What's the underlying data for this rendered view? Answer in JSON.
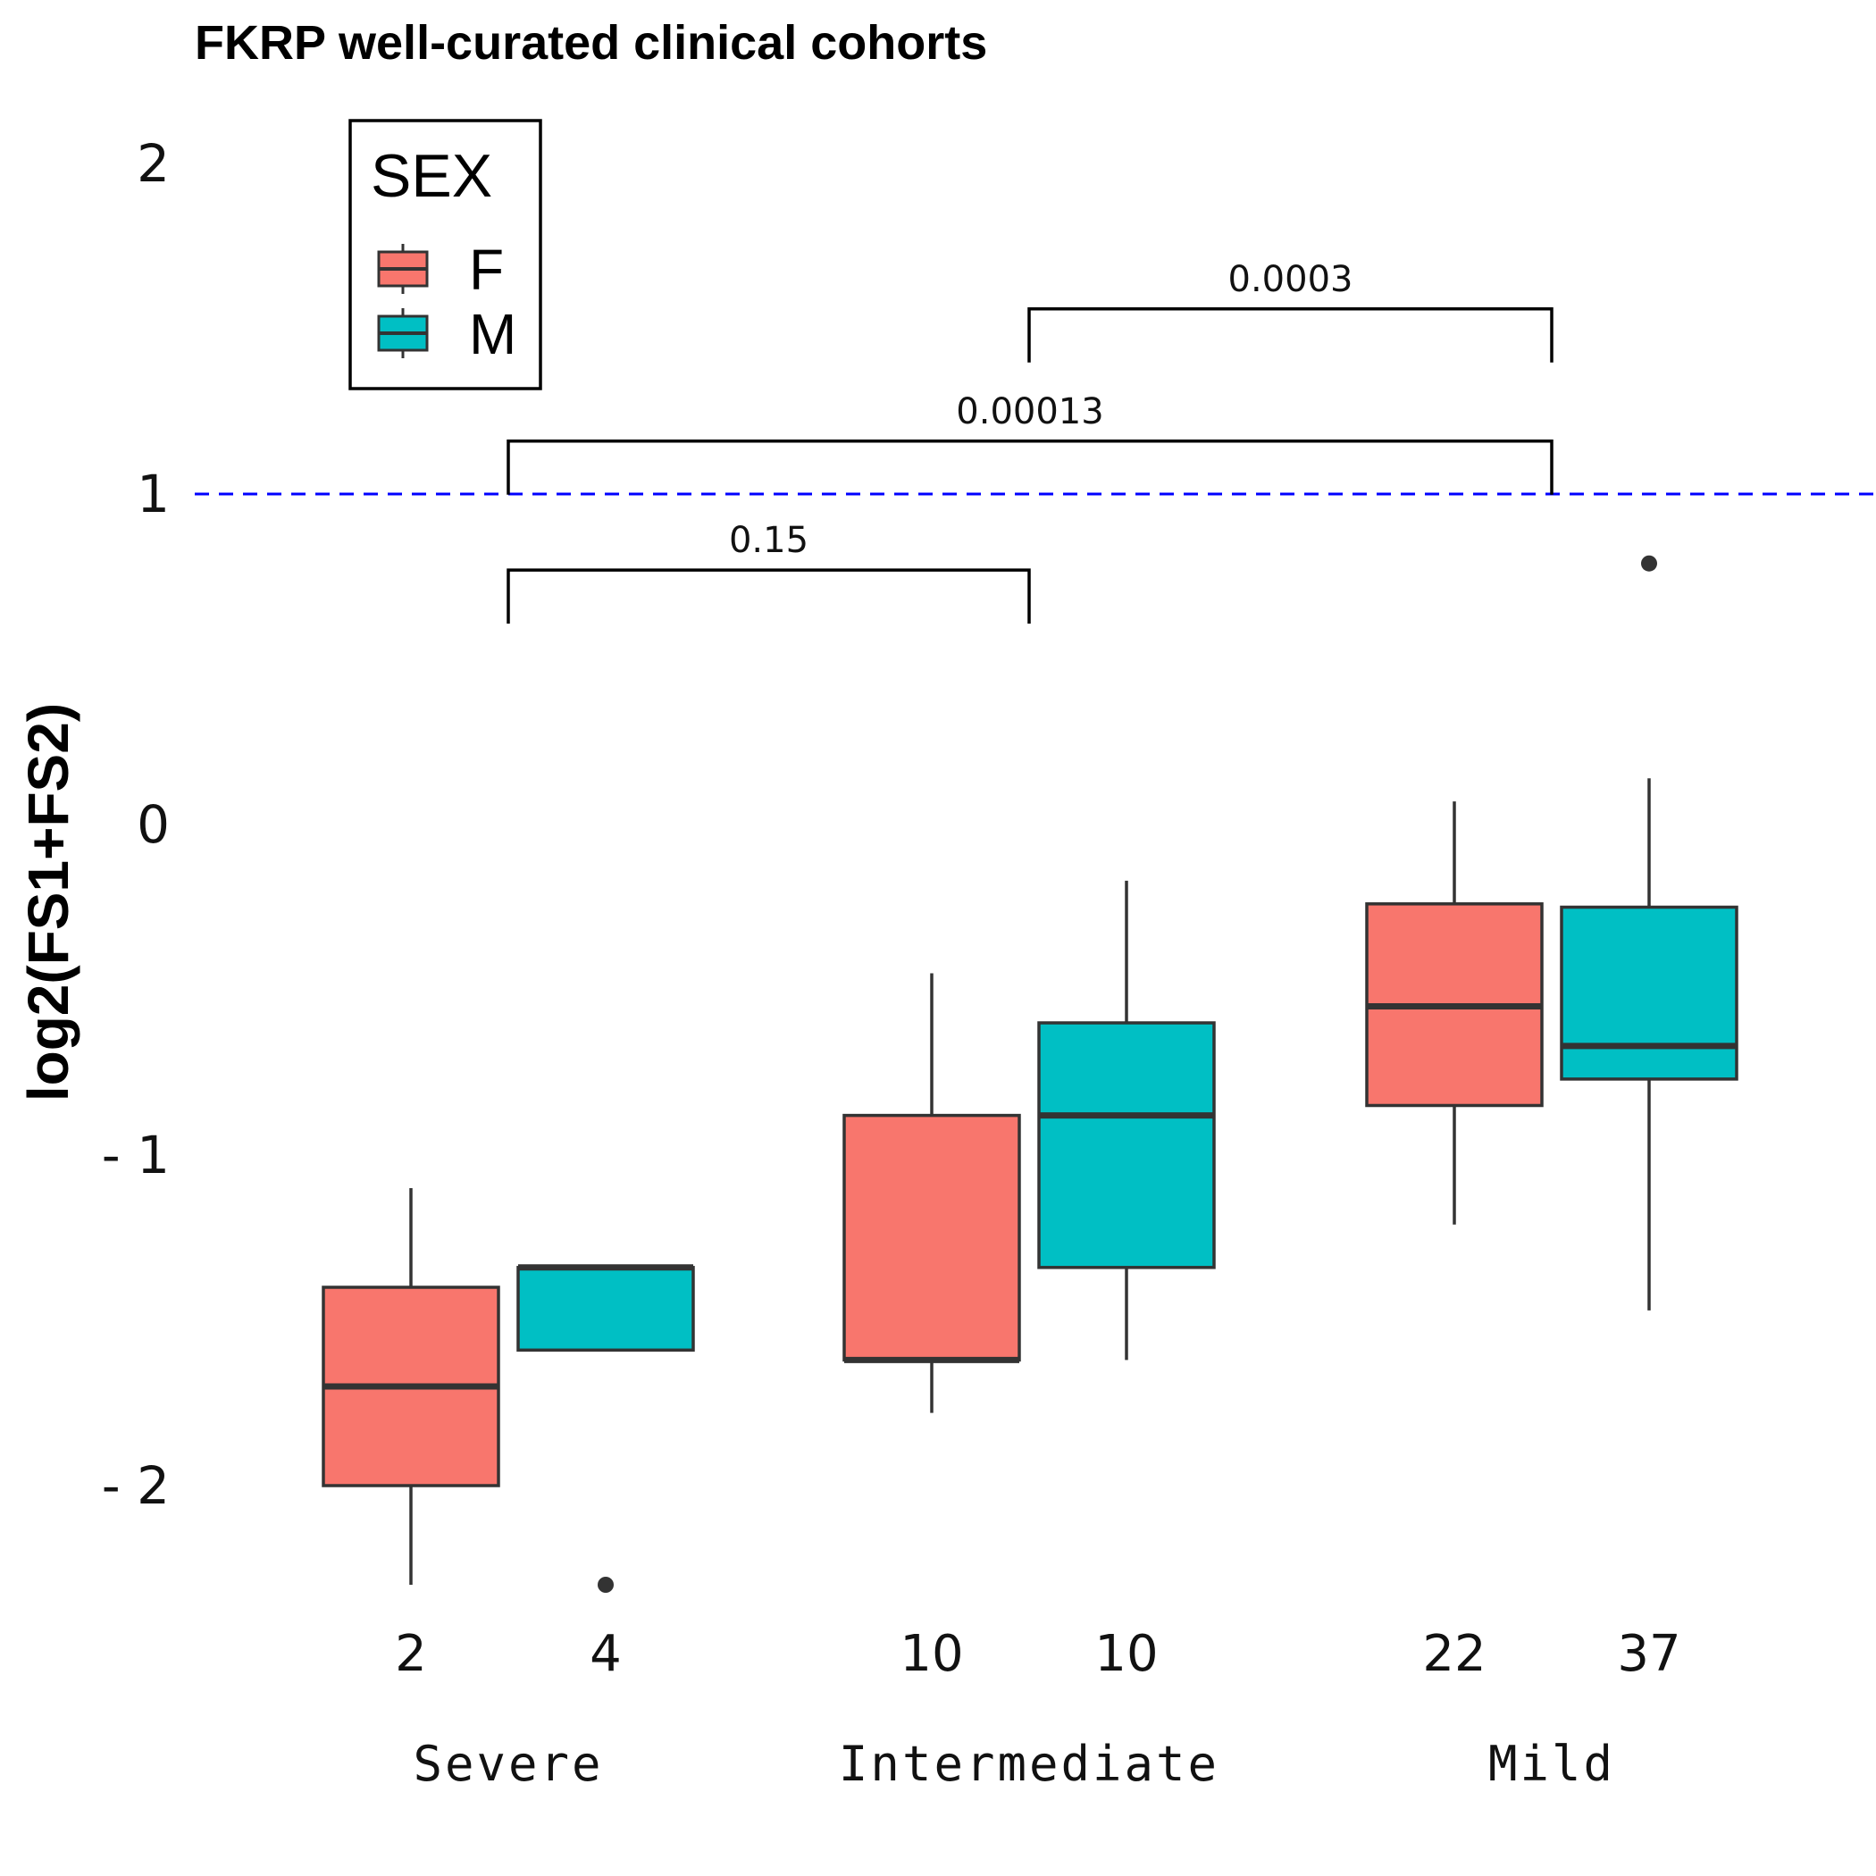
{
  "chart_data": {
    "type": "box",
    "title": "FKRP well-curated clinical cohorts",
    "ylabel": "log2(FS1+FS2)",
    "xlabel": "",
    "ylim": [
      -2.5,
      2.2
    ],
    "yticks": [
      2,
      1,
      0,
      -1,
      -2
    ],
    "ytick_labels": [
      "2",
      "1",
      "0",
      "- 1",
      "- 2"
    ],
    "reference_line": {
      "y": 1,
      "color": "#0000ff",
      "style": "dashed"
    },
    "legend": {
      "title": "SEX",
      "position": "top-left",
      "entries": [
        {
          "label": "F",
          "color": "#F8766D"
        },
        {
          "label": "M",
          "color": "#00BFC4"
        }
      ]
    },
    "categories": [
      "Severe",
      "Intermediate",
      "Mild"
    ],
    "boxes": [
      {
        "category": "Severe",
        "sex": "F",
        "n": "2",
        "whisker_low": -2.3,
        "q1": -2.0,
        "median": -1.7,
        "q3": -1.4,
        "whisker_high": -1.1,
        "outliers": []
      },
      {
        "category": "Severe",
        "sex": "M",
        "n": "4",
        "whisker_low": -1.59,
        "q1": -1.59,
        "median": -1.34,
        "q3": -1.34,
        "whisker_high": -1.34,
        "outliers": [
          -2.3
        ]
      },
      {
        "category": "Intermediate",
        "sex": "F",
        "n": "10",
        "whisker_low": -1.78,
        "q1": -1.62,
        "median": -1.62,
        "q3": -0.88,
        "whisker_high": -0.45,
        "outliers": []
      },
      {
        "category": "Intermediate",
        "sex": "M",
        "n": "10",
        "whisker_low": -1.62,
        "q1": -1.34,
        "median": -0.88,
        "q3": -0.6,
        "whisker_high": -0.17,
        "outliers": []
      },
      {
        "category": "Mild",
        "sex": "F",
        "n": "22",
        "whisker_low": -1.21,
        "q1": -0.85,
        "median": -0.55,
        "q3": -0.24,
        "whisker_high": 0.07,
        "outliers": []
      },
      {
        "category": "Mild",
        "sex": "M",
        "n": "37",
        "whisker_low": -1.47,
        "q1": -0.77,
        "median": -0.67,
        "q3": -0.25,
        "whisker_high": 0.14,
        "outliers": [
          0.79
        ]
      }
    ],
    "comparisons": [
      {
        "from": "Severe",
        "to": "Intermediate",
        "label": "0.15",
        "y": 0.77
      },
      {
        "from": "Severe",
        "to": "Mild",
        "label": "0.00013",
        "y": 1.16
      },
      {
        "from": "Intermediate",
        "to": "Mild",
        "label": "0.0003",
        "y": 1.56
      }
    ]
  }
}
